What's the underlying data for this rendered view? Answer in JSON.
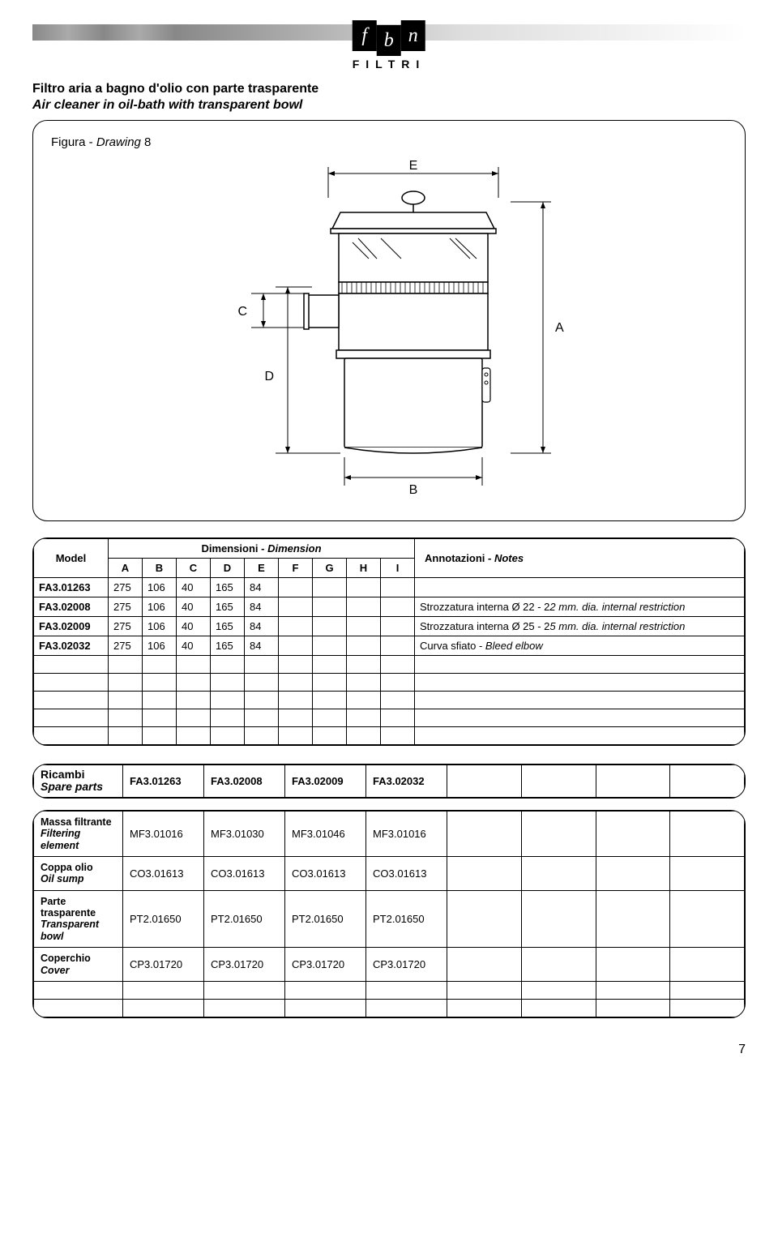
{
  "logo": {
    "letters": [
      "f",
      "b",
      "n"
    ],
    "sub": "FILTRI"
  },
  "title": {
    "line1": "Filtro aria a bagno d'olio con parte trasparente",
    "line2": "Air cleaner in oil-bath with transparent bowl"
  },
  "figure": {
    "label_prefix": "Figura - ",
    "label_italic": "Drawing",
    "label_num": " 8",
    "letters": {
      "E": "E",
      "C": "C",
      "A": "A",
      "D": "D",
      "B": "B"
    }
  },
  "table1": {
    "header": {
      "model": "Model",
      "dimensioni": "Dimensioni - ",
      "dimensioni_it": "Dimension",
      "notes": "Annotazioni - ",
      "notes_it": "Notes",
      "cols": [
        "A",
        "B",
        "C",
        "D",
        "E",
        "F",
        "G",
        "H",
        "I"
      ]
    },
    "rows": [
      {
        "model": "FA3.01263",
        "vals": [
          "275",
          "106",
          "40",
          "165",
          "84",
          "",
          "",
          "",
          ""
        ],
        "notes": ""
      },
      {
        "model": "FA3.02008",
        "vals": [
          "275",
          "106",
          "40",
          "165",
          "84",
          "",
          "",
          "",
          ""
        ],
        "notes": "Strozzatura interna Ø 22 - 22 mm. dia. internal restriction",
        "notes_italic_after": 28
      },
      {
        "model": "FA3.02009",
        "vals": [
          "275",
          "106",
          "40",
          "165",
          "84",
          "",
          "",
          "",
          ""
        ],
        "notes": "Strozzatura interna Ø 25 - 25 mm. dia. internal restriction",
        "notes_italic_after": 28
      },
      {
        "model": "FA3.02032",
        "vals": [
          "275",
          "106",
          "40",
          "165",
          "84",
          "",
          "",
          "",
          ""
        ],
        "notes": "Curva sfiato - Bleed elbow",
        "notes_italic_after": 15
      }
    ],
    "empty_rows": 5
  },
  "ricambi": {
    "label": "Ricambi",
    "label_it": "Spare parts",
    "models": [
      "FA3.01263",
      "FA3.02008",
      "FA3.02009",
      "FA3.02032"
    ]
  },
  "parts": {
    "rows": [
      {
        "label": "Massa filtrante",
        "label_it": "Filtering element",
        "vals": [
          "MF3.01016",
          "MF3.01030",
          "MF3.01046",
          "MF3.01016"
        ]
      },
      {
        "label": "Coppa olio",
        "label_it": "Oil sump",
        "vals": [
          "CO3.01613",
          "CO3.01613",
          "CO3.01613",
          "CO3.01613"
        ]
      },
      {
        "label": "Parte trasparente",
        "label_it": "Transparent bowl",
        "vals": [
          "PT2.01650",
          "PT2.01650",
          "PT2.01650",
          "PT2.01650"
        ]
      },
      {
        "label": "Coperchio",
        "label_it": "Cover",
        "vals": [
          "CP3.01720",
          "CP3.01720",
          "CP3.01720",
          "CP3.01720"
        ]
      }
    ],
    "empty_rows": 2
  },
  "page_num": "7"
}
